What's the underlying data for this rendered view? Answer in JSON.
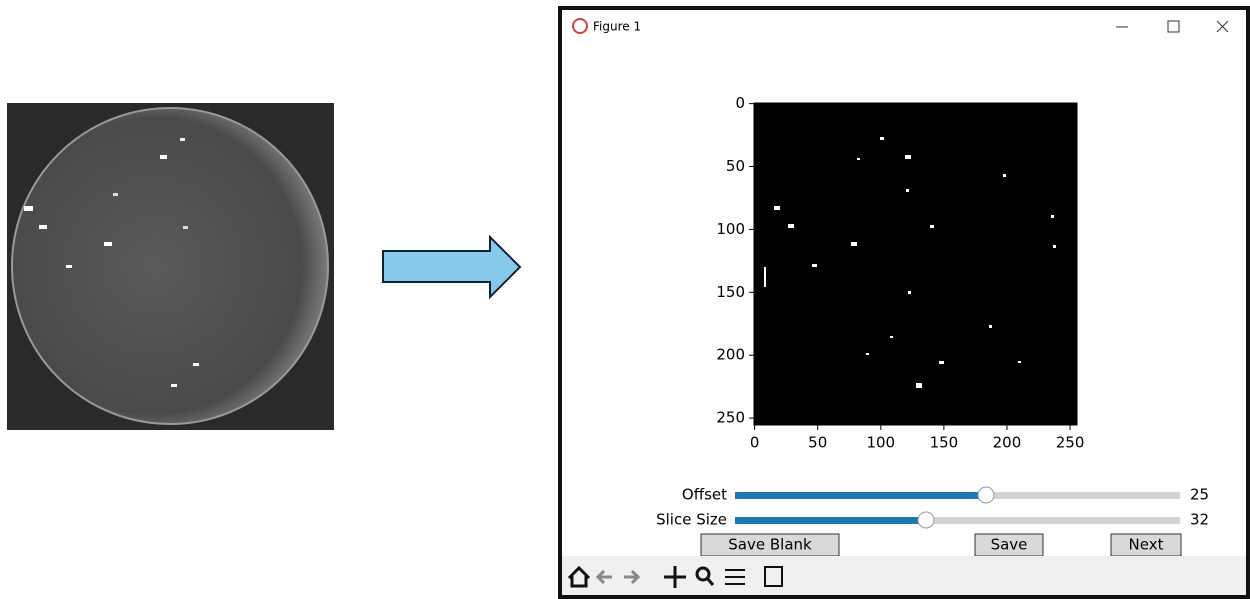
{
  "window": {
    "title": "Figure 1"
  },
  "plot": {
    "xticks": [
      0,
      50,
      100,
      150,
      200,
      250
    ],
    "yticks": [
      0,
      50,
      100,
      150,
      200,
      250
    ]
  },
  "sliders": [
    {
      "label": "Offset",
      "value": 25
    },
    {
      "label": "Slice Size",
      "value": 32
    }
  ],
  "buttons": [
    "Save Blank",
    "Save",
    "Next"
  ]
}
